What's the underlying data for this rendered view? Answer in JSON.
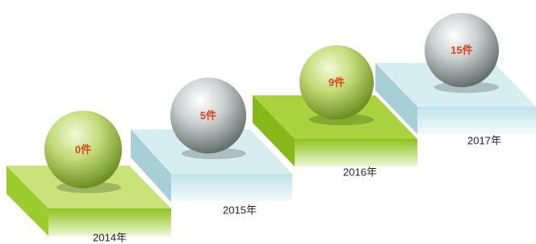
{
  "steps": [
    {
      "label": "0件",
      "year": "2014年"
    },
    {
      "label": "5件",
      "year": "2015年"
    },
    {
      "label": "9件",
      "year": "2016年"
    },
    {
      "label": "15件",
      "year": "2017年"
    }
  ]
}
